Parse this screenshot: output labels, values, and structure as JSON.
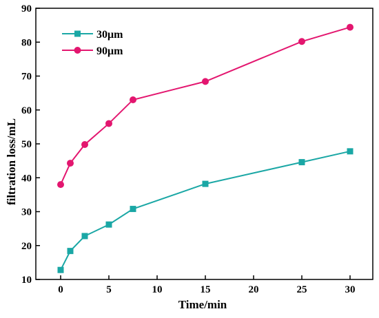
{
  "chart_data": {
    "type": "line",
    "title": "",
    "xlabel": "Time/min",
    "ylabel": "filtration loss/mL",
    "xlim": [
      -3,
      32
    ],
    "ylim": [
      10,
      90
    ],
    "xticks": [
      0,
      5,
      10,
      15,
      20,
      25,
      30
    ],
    "yticks": [
      10,
      20,
      30,
      40,
      50,
      60,
      70,
      80,
      90
    ],
    "legend_position": "top-left",
    "grid": false,
    "series": [
      {
        "name": "30μm",
        "color": "#1aa7a5",
        "marker": "square",
        "x": [
          0,
          1,
          2.5,
          5,
          7.5,
          15,
          25,
          30
        ],
        "y": [
          12.8,
          18.4,
          22.8,
          26.2,
          30.8,
          38.2,
          44.6,
          47.8
        ]
      },
      {
        "name": "90μm",
        "color": "#e3166f",
        "marker": "circle",
        "x": [
          0,
          1,
          2.5,
          5,
          7.5,
          15,
          25,
          30
        ],
        "y": [
          38.0,
          44.3,
          49.8,
          56.0,
          63.0,
          68.4,
          80.2,
          84.4
        ]
      }
    ]
  }
}
